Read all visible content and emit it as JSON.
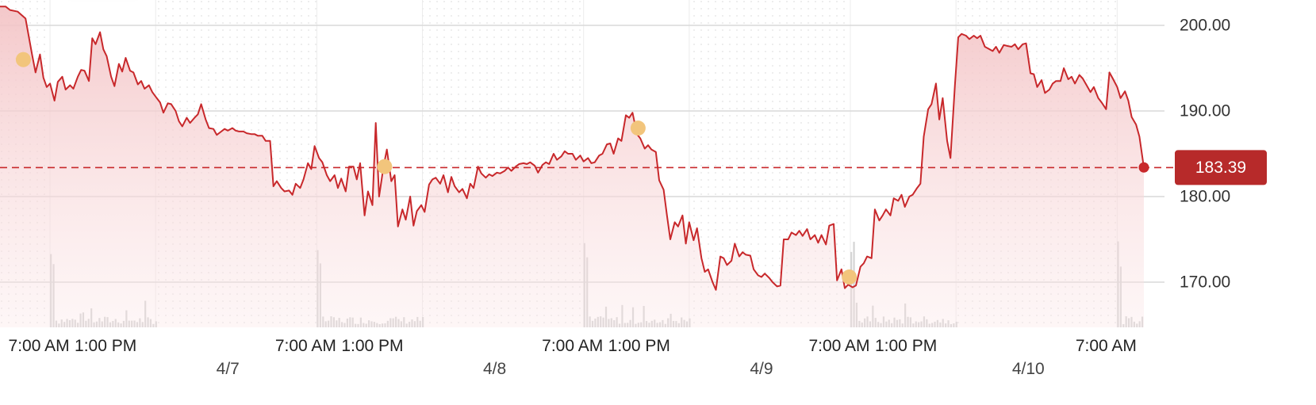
{
  "chart_data": {
    "type": "line",
    "title": "",
    "xlabel": "",
    "ylabel": "",
    "ylim": [
      163,
      203
    ],
    "y_ticks": [
      "170.00",
      "180.00",
      "190.00",
      "200.00"
    ],
    "y_tick_values": [
      170,
      180,
      190,
      200
    ],
    "x_time_labels": [
      "7:00 AM",
      "1:00 PM",
      "7:00 AM",
      "1:00 PM",
      "7:00 AM",
      "1:00 PM",
      "7:00 AM",
      "1:00 PM",
      "7:00 AM"
    ],
    "x_time_label_hours": [
      7,
      13,
      31,
      37,
      55,
      61,
      79,
      85,
      103
    ],
    "x_date_labels": [
      "4/7",
      "4/8",
      "4/9",
      "4/10"
    ],
    "x_date_label_hours": [
      24,
      48,
      72,
      96
    ],
    "x_range_hours": [
      3.5,
      111
    ],
    "current_price": "183.39",
    "current_value": 183.39,
    "grid": true,
    "colors": {
      "line": "#c8282b",
      "fill": "#f3c6c8",
      "marker": "#f2c57c",
      "badge": "#b72a2a",
      "volume": "#d4d4d4"
    },
    "series": [
      {
        "values": [
          [
            3.5,
            202.2
          ],
          [
            4.0,
            202.2
          ],
          [
            4.4,
            201.8
          ],
          [
            5.1,
            201.6
          ],
          [
            5.8,
            200.8
          ],
          [
            6.4,
            196.5
          ],
          [
            6.7,
            194.5
          ],
          [
            7.1,
            196.6
          ],
          [
            7.4,
            193.9
          ],
          [
            7.7,
            192.8
          ],
          [
            8.0,
            193.2
          ],
          [
            8.4,
            191.2
          ],
          [
            8.7,
            193.4
          ],
          [
            9.1,
            194.0
          ],
          [
            9.4,
            192.5
          ],
          [
            9.8,
            193.0
          ],
          [
            10.1,
            192.6
          ],
          [
            10.5,
            194.0
          ],
          [
            10.8,
            194.8
          ],
          [
            11.1,
            194.7
          ],
          [
            11.5,
            193.5
          ],
          [
            11.8,
            198.5
          ],
          [
            12.1,
            197.8
          ],
          [
            12.5,
            199.2
          ],
          [
            12.8,
            197.2
          ],
          [
            13.1,
            196.4
          ],
          [
            13.5,
            194.0
          ],
          [
            13.8,
            192.9
          ],
          [
            14.2,
            195.5
          ],
          [
            14.5,
            194.6
          ],
          [
            14.8,
            196.2
          ],
          [
            15.2,
            194.7
          ],
          [
            15.5,
            194.5
          ],
          [
            15.9,
            193.1
          ],
          [
            16.2,
            193.5
          ],
          [
            16.5,
            192.6
          ],
          [
            16.9,
            193.0
          ],
          [
            17.2,
            192.2
          ],
          [
            17.6,
            191.5
          ],
          [
            17.9,
            191.0
          ],
          [
            18.2,
            189.8
          ],
          [
            18.6,
            190.9
          ],
          [
            18.9,
            190.8
          ],
          [
            19.3,
            190.0
          ],
          [
            19.6,
            188.8
          ],
          [
            19.9,
            188.2
          ],
          [
            20.3,
            189.2
          ],
          [
            20.6,
            188.6
          ],
          [
            21.0,
            189.2
          ],
          [
            21.3,
            189.6
          ],
          [
            21.6,
            190.8
          ],
          [
            22.0,
            189.0
          ],
          [
            22.3,
            188.0
          ],
          [
            22.7,
            187.9
          ],
          [
            23.0,
            187.2
          ],
          [
            23.3,
            187.5
          ],
          [
            23.7,
            187.9
          ],
          [
            24.0,
            187.7
          ],
          [
            24.4,
            188.0
          ],
          [
            24.7,
            187.7
          ],
          [
            25.0,
            187.6
          ],
          [
            25.4,
            187.6
          ],
          [
            25.7,
            187.4
          ],
          [
            26.1,
            187.3
          ],
          [
            26.4,
            187.3
          ],
          [
            26.7,
            187.1
          ],
          [
            27.1,
            187.1
          ],
          [
            27.4,
            186.5
          ],
          [
            27.8,
            186.5
          ],
          [
            28.1,
            181.2
          ],
          [
            28.4,
            181.8
          ],
          [
            28.8,
            181.0
          ],
          [
            29.1,
            180.6
          ],
          [
            29.5,
            180.7
          ],
          [
            29.8,
            180.2
          ],
          [
            30.1,
            181.5
          ],
          [
            30.5,
            181.0
          ],
          [
            30.8,
            182.0
          ],
          [
            31.2,
            183.9
          ],
          [
            31.5,
            183.2
          ],
          [
            31.8,
            185.9
          ],
          [
            32.2,
            184.5
          ],
          [
            32.5,
            184.0
          ],
          [
            32.9,
            182.5
          ],
          [
            33.2,
            181.8
          ],
          [
            33.6,
            182.5
          ],
          [
            33.9,
            181.0
          ],
          [
            34.2,
            182.1
          ],
          [
            34.6,
            180.6
          ],
          [
            34.9,
            183.5
          ],
          [
            35.3,
            183.5
          ],
          [
            35.6,
            182.0
          ],
          [
            35.9,
            183.9
          ],
          [
            36.3,
            177.8
          ],
          [
            36.6,
            180.6
          ],
          [
            37.0,
            179.0
          ],
          [
            37.3,
            188.6
          ],
          [
            37.6,
            180.0
          ],
          [
            38.0,
            183.5
          ],
          [
            38.3,
            185.5
          ],
          [
            38.7,
            181.8
          ],
          [
            39.0,
            182.5
          ],
          [
            39.3,
            176.5
          ],
          [
            39.7,
            178.5
          ],
          [
            40.0,
            177.3
          ],
          [
            40.4,
            180.0
          ],
          [
            40.7,
            176.6
          ],
          [
            41.0,
            178.3
          ],
          [
            41.4,
            179.0
          ],
          [
            41.7,
            178.2
          ],
          [
            42.1,
            181.4
          ],
          [
            42.4,
            182.0
          ],
          [
            42.7,
            182.2
          ],
          [
            43.1,
            181.5
          ],
          [
            43.4,
            182.5
          ],
          [
            43.8,
            180.5
          ],
          [
            44.1,
            182.3
          ],
          [
            44.4,
            181.2
          ],
          [
            44.8,
            180.5
          ],
          [
            45.1,
            180.9
          ],
          [
            45.5,
            179.8
          ],
          [
            45.8,
            181.5
          ],
          [
            46.1,
            181.0
          ],
          [
            46.5,
            183.5
          ],
          [
            46.8,
            182.7
          ],
          [
            47.2,
            182.2
          ],
          [
            47.5,
            182.6
          ],
          [
            47.8,
            182.4
          ],
          [
            48.2,
            182.8
          ],
          [
            48.5,
            182.7
          ],
          [
            48.9,
            183.0
          ],
          [
            49.2,
            183.4
          ],
          [
            49.5,
            183.0
          ],
          [
            49.9,
            183.5
          ],
          [
            50.2,
            183.8
          ],
          [
            50.6,
            183.9
          ],
          [
            50.9,
            183.8
          ],
          [
            51.2,
            184.0
          ],
          [
            51.6,
            183.6
          ],
          [
            51.9,
            182.8
          ],
          [
            52.3,
            183.7
          ],
          [
            52.6,
            184.0
          ],
          [
            52.9,
            183.8
          ],
          [
            53.3,
            185.0
          ],
          [
            53.6,
            184.3
          ],
          [
            54.0,
            184.7
          ],
          [
            54.3,
            185.3
          ],
          [
            54.6,
            185.0
          ],
          [
            55.0,
            185.0
          ],
          [
            55.3,
            184.3
          ],
          [
            55.7,
            184.8
          ],
          [
            56.0,
            184.1
          ],
          [
            56.4,
            184.5
          ],
          [
            56.7,
            183.9
          ],
          [
            57.0,
            184.0
          ],
          [
            57.4,
            184.8
          ],
          [
            57.7,
            185.0
          ],
          [
            58.1,
            186.1
          ],
          [
            58.4,
            186.2
          ],
          [
            58.7,
            185.0
          ],
          [
            59.1,
            186.8
          ],
          [
            59.4,
            186.5
          ],
          [
            59.8,
            189.5
          ],
          [
            60.1,
            189.2
          ],
          [
            60.4,
            189.8
          ],
          [
            60.8,
            187.3
          ],
          [
            61.1,
            186.8
          ],
          [
            61.5,
            185.6
          ],
          [
            61.8,
            186.0
          ],
          [
            62.1,
            185.5
          ],
          [
            62.5,
            185.2
          ],
          [
            62.8,
            181.9
          ],
          [
            63.2,
            180.8
          ],
          [
            63.5,
            177.8
          ],
          [
            63.8,
            175.0
          ],
          [
            64.2,
            177.0
          ],
          [
            64.5,
            176.5
          ],
          [
            64.9,
            177.8
          ],
          [
            65.2,
            174.5
          ],
          [
            65.5,
            177.0
          ],
          [
            65.9,
            174.9
          ],
          [
            66.2,
            176.3
          ],
          [
            66.6,
            172.8
          ],
          [
            66.9,
            171.2
          ],
          [
            67.2,
            171.5
          ],
          [
            67.6,
            170.0
          ],
          [
            67.9,
            169.1
          ],
          [
            68.3,
            173.0
          ],
          [
            68.6,
            172.8
          ],
          [
            68.9,
            172.0
          ],
          [
            69.3,
            172.5
          ],
          [
            69.6,
            174.5
          ],
          [
            70.0,
            173.0
          ],
          [
            70.3,
            173.5
          ],
          [
            70.6,
            173.2
          ],
          [
            71.0,
            173.1
          ],
          [
            71.3,
            171.5
          ],
          [
            71.7,
            170.8
          ],
          [
            72.0,
            170.6
          ],
          [
            72.3,
            171.0
          ],
          [
            72.7,
            170.5
          ],
          [
            73.0,
            170.0
          ],
          [
            73.4,
            169.5
          ],
          [
            73.7,
            169.6
          ],
          [
            74.0,
            175.0
          ],
          [
            74.4,
            175.0
          ],
          [
            74.7,
            175.8
          ],
          [
            75.1,
            175.5
          ],
          [
            75.4,
            176.0
          ],
          [
            75.7,
            175.4
          ],
          [
            76.1,
            176.2
          ],
          [
            76.4,
            175.0
          ],
          [
            76.8,
            175.5
          ],
          [
            77.1,
            174.6
          ],
          [
            77.4,
            175.5
          ],
          [
            77.8,
            174.4
          ],
          [
            78.1,
            176.6
          ],
          [
            78.5,
            176.8
          ],
          [
            78.8,
            170.2
          ],
          [
            79.2,
            171.5
          ],
          [
            79.5,
            169.3
          ],
          [
            79.8,
            169.7
          ],
          [
            80.2,
            169.4
          ],
          [
            80.5,
            169.6
          ],
          [
            80.9,
            171.8
          ],
          [
            81.2,
            172.2
          ],
          [
            81.5,
            173.0
          ],
          [
            81.9,
            172.8
          ],
          [
            82.2,
            178.5
          ],
          [
            82.6,
            177.2
          ],
          [
            82.9,
            177.8
          ],
          [
            83.2,
            178.5
          ],
          [
            83.6,
            177.8
          ],
          [
            83.9,
            179.8
          ],
          [
            84.3,
            179.5
          ],
          [
            84.6,
            180.2
          ],
          [
            84.9,
            178.8
          ],
          [
            85.3,
            180.0
          ],
          [
            85.6,
            180.2
          ],
          [
            86.0,
            181.0
          ],
          [
            86.3,
            181.5
          ],
          [
            86.6,
            187.0
          ],
          [
            87.0,
            190.2
          ],
          [
            87.3,
            190.8
          ],
          [
            87.7,
            193.2
          ],
          [
            88.0,
            189.0
          ],
          [
            88.3,
            191.5
          ],
          [
            88.7,
            186.5
          ],
          [
            89.0,
            184.5
          ],
          [
            89.4,
            193.0
          ],
          [
            89.7,
            198.6
          ],
          [
            90.0,
            199.0
          ],
          [
            90.4,
            198.8
          ],
          [
            90.7,
            198.4
          ],
          [
            91.1,
            198.8
          ],
          [
            91.4,
            198.5
          ],
          [
            91.7,
            198.8
          ],
          [
            92.1,
            197.5
          ],
          [
            92.4,
            197.3
          ],
          [
            92.8,
            197.0
          ],
          [
            93.1,
            197.5
          ],
          [
            93.4,
            196.8
          ],
          [
            93.8,
            197.7
          ],
          [
            94.1,
            197.6
          ],
          [
            94.5,
            197.5
          ],
          [
            94.8,
            197.8
          ],
          [
            95.1,
            197.2
          ],
          [
            95.5,
            197.8
          ],
          [
            95.8,
            197.9
          ],
          [
            96.2,
            194.4
          ],
          [
            96.5,
            194.3
          ],
          [
            96.8,
            192.8
          ],
          [
            97.2,
            193.6
          ],
          [
            97.5,
            192.1
          ],
          [
            97.9,
            192.5
          ],
          [
            98.2,
            193.2
          ],
          [
            98.5,
            193.5
          ],
          [
            98.9,
            193.5
          ],
          [
            99.2,
            195.0
          ],
          [
            99.6,
            193.7
          ],
          [
            99.9,
            194.0
          ],
          [
            100.2,
            193.2
          ],
          [
            100.6,
            194.2
          ],
          [
            100.9,
            193.8
          ],
          [
            101.3,
            192.9
          ],
          [
            101.6,
            192.2
          ],
          [
            101.9,
            192.8
          ],
          [
            102.3,
            191.5
          ],
          [
            102.6,
            191.0
          ],
          [
            103.0,
            190.2
          ],
          [
            103.3,
            194.5
          ],
          [
            103.6,
            193.8
          ],
          [
            104.0,
            192.8
          ],
          [
            104.3,
            191.5
          ],
          [
            104.7,
            192.3
          ],
          [
            105.0,
            191.2
          ],
          [
            105.3,
            189.3
          ],
          [
            105.7,
            188.4
          ],
          [
            106.0,
            187.0
          ],
          [
            106.4,
            183.4
          ]
        ]
      }
    ],
    "markers": [
      [
        5.6,
        196.0
      ],
      [
        38.1,
        183.5
      ],
      [
        60.9,
        188.0
      ],
      [
        79.9,
        170.6
      ]
    ],
    "volume_sessions": [
      [
        8.0,
        17.5
      ],
      [
        32.0,
        41.5
      ],
      [
        56.0,
        65.5
      ],
      [
        80.0,
        89.5
      ],
      [
        104.0,
        106.4
      ]
    ]
  }
}
